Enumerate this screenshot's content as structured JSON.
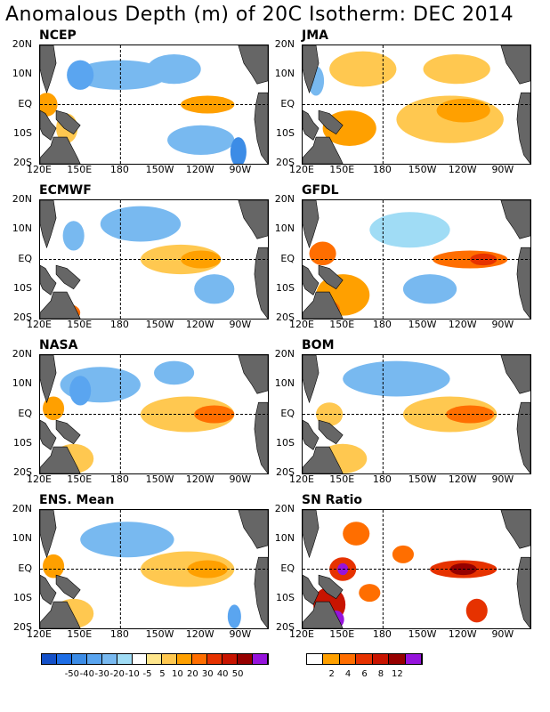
{
  "title": "Anomalous Depth (m) of 20C Isotherm: DEC 2014",
  "lat_labels": [
    "20N",
    "10N",
    "EQ",
    "10S",
    "20S"
  ],
  "lon_labels": [
    "120E",
    "150E",
    "180",
    "150W",
    "120W",
    "90W"
  ],
  "panels": [
    {
      "name": "NCEP",
      "scale": "anomaly",
      "blobs": [
        {
          "lon": 180,
          "lat": 10,
          "rx": 35,
          "ry": 5,
          "level": -2
        },
        {
          "lon": 150,
          "lat": 10,
          "rx": 10,
          "ry": 5,
          "level": -3
        },
        {
          "lon": 220,
          "lat": 12,
          "rx": 20,
          "ry": 5,
          "level": -2
        },
        {
          "lon": 125,
          "lat": 0,
          "rx": 8,
          "ry": 4,
          "level": 3
        },
        {
          "lon": 245,
          "lat": 0,
          "rx": 20,
          "ry": 3,
          "level": 3
        },
        {
          "lon": 240,
          "lat": -12,
          "rx": 25,
          "ry": 5,
          "level": -2
        },
        {
          "lon": 268,
          "lat": -16,
          "rx": 6,
          "ry": 5,
          "level": -4
        },
        {
          "lon": 140,
          "lat": -8,
          "rx": 8,
          "ry": 5,
          "level": 2
        }
      ]
    },
    {
      "name": "JMA",
      "scale": "anomaly",
      "blobs": [
        {
          "lon": 165,
          "lat": 12,
          "rx": 25,
          "ry": 6,
          "level": 2
        },
        {
          "lon": 235,
          "lat": 12,
          "rx": 25,
          "ry": 5,
          "level": 2
        },
        {
          "lon": 230,
          "lat": -5,
          "rx": 40,
          "ry": 8,
          "level": 2
        },
        {
          "lon": 240,
          "lat": -2,
          "rx": 20,
          "ry": 4,
          "level": 3
        },
        {
          "lon": 155,
          "lat": -8,
          "rx": 20,
          "ry": 6,
          "level": 3
        },
        {
          "lon": 130,
          "lat": 8,
          "rx": 6,
          "ry": 5,
          "level": -2
        }
      ]
    },
    {
      "name": "ECMWF",
      "scale": "anomaly",
      "blobs": [
        {
          "lon": 195,
          "lat": 12,
          "rx": 30,
          "ry": 6,
          "level": -2
        },
        {
          "lon": 225,
          "lat": 0,
          "rx": 30,
          "ry": 5,
          "level": 2
        },
        {
          "lon": 240,
          "lat": 0,
          "rx": 15,
          "ry": 3,
          "level": 3
        },
        {
          "lon": 145,
          "lat": 8,
          "rx": 8,
          "ry": 5,
          "level": -2
        },
        {
          "lon": 140,
          "lat": -18,
          "rx": 10,
          "ry": 3,
          "level": 4
        },
        {
          "lon": 250,
          "lat": -10,
          "rx": 15,
          "ry": 5,
          "level": -2
        }
      ]
    },
    {
      "name": "GFDL",
      "scale": "anomaly",
      "blobs": [
        {
          "lon": 245,
          "lat": 0,
          "rx": 28,
          "ry": 3,
          "level": 4
        },
        {
          "lon": 255,
          "lat": 0,
          "rx": 10,
          "ry": 2,
          "level": 5
        },
        {
          "lon": 135,
          "lat": 2,
          "rx": 10,
          "ry": 4,
          "level": 4
        },
        {
          "lon": 150,
          "lat": -12,
          "rx": 20,
          "ry": 7,
          "level": 3
        },
        {
          "lon": 140,
          "lat": -17,
          "rx": 8,
          "ry": 3,
          "level": 4
        },
        {
          "lon": 200,
          "lat": 10,
          "rx": 30,
          "ry": 6,
          "level": -1
        },
        {
          "lon": 215,
          "lat": -10,
          "rx": 20,
          "ry": 5,
          "level": -2
        }
      ]
    },
    {
      "name": "NASA",
      "scale": "anomaly",
      "blobs": [
        {
          "lon": 165,
          "lat": 10,
          "rx": 30,
          "ry": 6,
          "level": -2
        },
        {
          "lon": 150,
          "lat": 8,
          "rx": 8,
          "ry": 5,
          "level": -3
        },
        {
          "lon": 230,
          "lat": 0,
          "rx": 35,
          "ry": 6,
          "level": 2
        },
        {
          "lon": 250,
          "lat": 0,
          "rx": 15,
          "ry": 3,
          "level": 4
        },
        {
          "lon": 130,
          "lat": 2,
          "rx": 8,
          "ry": 4,
          "level": 3
        },
        {
          "lon": 145,
          "lat": -15,
          "rx": 15,
          "ry": 5,
          "level": 2
        },
        {
          "lon": 220,
          "lat": 14,
          "rx": 15,
          "ry": 4,
          "level": -2
        }
      ]
    },
    {
      "name": "BOM",
      "scale": "anomaly",
      "blobs": [
        {
          "lon": 190,
          "lat": 12,
          "rx": 40,
          "ry": 6,
          "level": -2
        },
        {
          "lon": 230,
          "lat": 0,
          "rx": 35,
          "ry": 6,
          "level": 2
        },
        {
          "lon": 245,
          "lat": 0,
          "rx": 18,
          "ry": 3,
          "level": 4
        },
        {
          "lon": 140,
          "lat": 0,
          "rx": 10,
          "ry": 4,
          "level": 2
        },
        {
          "lon": 150,
          "lat": -15,
          "rx": 18,
          "ry": 5,
          "level": 2
        }
      ]
    },
    {
      "name": "ENS. Mean",
      "scale": "anomaly",
      "blobs": [
        {
          "lon": 185,
          "lat": 10,
          "rx": 35,
          "ry": 6,
          "level": -2
        },
        {
          "lon": 230,
          "lat": 0,
          "rx": 35,
          "ry": 6,
          "level": 2
        },
        {
          "lon": 245,
          "lat": 0,
          "rx": 15,
          "ry": 3,
          "level": 3
        },
        {
          "lon": 130,
          "lat": 1,
          "rx": 8,
          "ry": 4,
          "level": 3
        },
        {
          "lon": 145,
          "lat": -15,
          "rx": 15,
          "ry": 5,
          "level": 2
        },
        {
          "lon": 265,
          "lat": -16,
          "rx": 5,
          "ry": 4,
          "level": -3
        }
      ]
    },
    {
      "name": "SN Ratio",
      "scale": "snratio",
      "blobs": [
        {
          "lon": 150,
          "lat": 0,
          "rx": 10,
          "ry": 4,
          "level": 3
        },
        {
          "lon": 150,
          "lat": 0,
          "rx": 4,
          "ry": 2,
          "level": 6
        },
        {
          "lon": 140,
          "lat": -12,
          "rx": 12,
          "ry": 6,
          "level": 4
        },
        {
          "lon": 145,
          "lat": -17,
          "rx": 6,
          "ry": 3,
          "level": 6
        },
        {
          "lon": 240,
          "lat": 0,
          "rx": 25,
          "ry": 3,
          "level": 3
        },
        {
          "lon": 240,
          "lat": 0,
          "rx": 10,
          "ry": 2,
          "level": 5
        },
        {
          "lon": 160,
          "lat": 12,
          "rx": 10,
          "ry": 4,
          "level": 2
        },
        {
          "lon": 195,
          "lat": 5,
          "rx": 8,
          "ry": 3,
          "level": 2
        },
        {
          "lon": 170,
          "lat": -8,
          "rx": 8,
          "ry": 3,
          "level": 2
        },
        {
          "lon": 250,
          "lat": -14,
          "rx": 8,
          "ry": 4,
          "level": 3
        }
      ]
    }
  ],
  "colorbar_anomaly": {
    "colors": [
      "#1450c8",
      "#1e6ee6",
      "#3c8ce6",
      "#5aa5f0",
      "#78b9f0",
      "#a0dcf5",
      "#ffffff",
      "#ffe68c",
      "#ffc850",
      "#ffa000",
      "#ff6e00",
      "#e63200",
      "#c81400",
      "#960000",
      "#9614dc"
    ],
    "labels": [
      "-50",
      "-40",
      "-30",
      "-20",
      "-10",
      "-5",
      "5",
      "10",
      "20",
      "30",
      "40",
      "50"
    ]
  },
  "colorbar_snratio": {
    "colors": [
      "#ffffff",
      "#ffa000",
      "#ff6e00",
      "#e63200",
      "#c81400",
      "#960000",
      "#9614dc"
    ],
    "labels": [
      "2",
      "4",
      "6",
      "8",
      "12"
    ]
  }
}
